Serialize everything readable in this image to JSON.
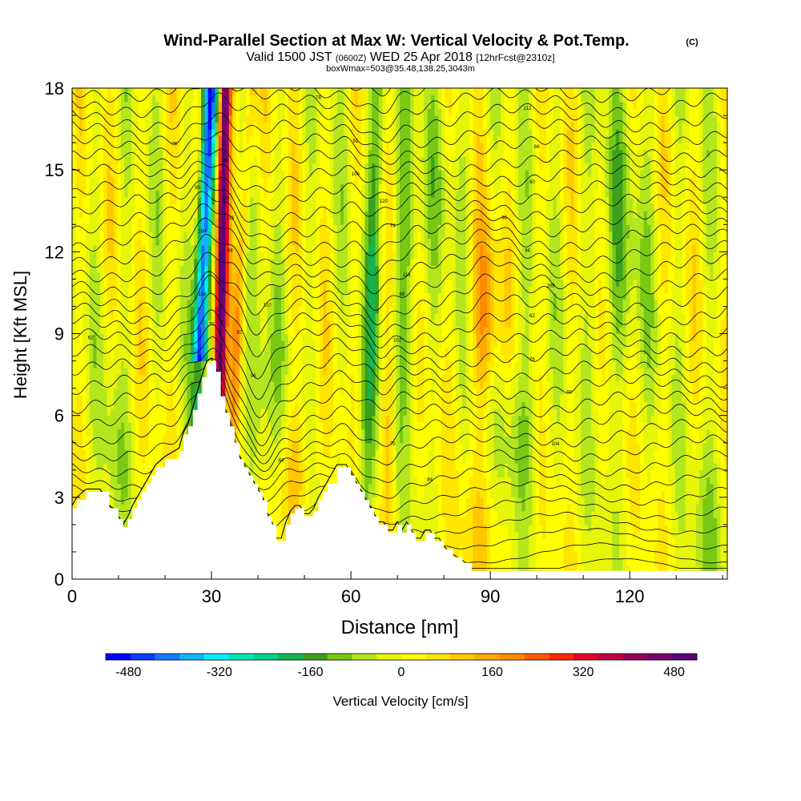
{
  "header": {
    "title": "Wind-Parallel Section at Max W: Vertical Velocity & Pot.Temp.",
    "copyright": "(C)",
    "valid_prefix": "Valid 1500 JST",
    "valid_utc": "(0600Z)",
    "valid_date": "WED 25 Apr 2018",
    "forecast": "[12hrFcst@2310z]",
    "box_info": "boxWmax=503@35.48,138.25,3043m"
  },
  "chart_data": {
    "type": "heatmap",
    "xlabel": "Distance [nm]",
    "ylabel": "Height [Kft MSL]",
    "xlim": [
      0,
      141
    ],
    "ylim": [
      0,
      18
    ],
    "x_ticks": [
      0,
      30,
      60,
      90,
      120
    ],
    "y_ticks": [
      0,
      3,
      6,
      9,
      12,
      15,
      18
    ],
    "colorbar": {
      "label": "Vertical Velocity [cm/s]",
      "ticks": [
        "-480",
        "-320",
        "-160",
        "0",
        "160",
        "320",
        "480"
      ],
      "range": [
        -520,
        520
      ],
      "colors": [
        "#0000ff",
        "#0a3cff",
        "#1478ff",
        "#14b4ff",
        "#00f0ff",
        "#00e6b4",
        "#00d28c",
        "#14b450",
        "#3ca01e",
        "#78c814",
        "#b4e61e",
        "#e6f50a",
        "#ffff00",
        "#ffe600",
        "#ffc800",
        "#ffaa00",
        "#ff8c00",
        "#ff5a00",
        "#ff2800",
        "#e60028",
        "#be0046",
        "#96005a",
        "#78006e",
        "#5a0078"
      ]
    },
    "terrain_kft": [
      [
        0,
        2.6
      ],
      [
        1,
        2.9
      ],
      [
        3,
        3.2
      ],
      [
        6,
        3.2
      ],
      [
        8,
        2.6
      ],
      [
        10,
        2.2
      ],
      [
        11,
        1.9
      ],
      [
        12,
        2.2
      ],
      [
        13,
        2.6
      ],
      [
        14,
        2.9
      ],
      [
        15,
        3.2
      ],
      [
        16,
        3.5
      ],
      [
        17,
        3.8
      ],
      [
        18,
        4.1
      ],
      [
        20,
        4.4
      ],
      [
        23,
        4.7
      ],
      [
        24,
        5.3
      ],
      [
        25,
        5.6
      ],
      [
        26,
        6.2
      ],
      [
        27,
        6.8
      ],
      [
        28,
        7.4
      ],
      [
        29,
        7.9
      ],
      [
        30,
        8.0
      ],
      [
        31,
        7.6
      ],
      [
        32,
        6.7
      ],
      [
        33,
        6.1
      ],
      [
        34,
        5.6
      ],
      [
        35,
        5.0
      ],
      [
        36,
        4.4
      ],
      [
        37,
        4.1
      ],
      [
        38,
        3.8
      ],
      [
        39,
        3.5
      ],
      [
        40,
        3.2
      ],
      [
        41,
        2.9
      ],
      [
        42,
        2.3
      ],
      [
        43,
        2.0
      ],
      [
        44,
        1.4
      ],
      [
        45,
        1.4
      ],
      [
        46,
        2.0
      ],
      [
        47,
        2.4
      ],
      [
        48,
        2.6
      ],
      [
        49,
        2.6
      ],
      [
        50,
        2.3
      ],
      [
        51,
        2.3
      ],
      [
        52,
        2.5
      ],
      [
        53,
        2.9
      ],
      [
        54,
        3.2
      ],
      [
        55,
        3.5
      ],
      [
        57,
        4.1
      ],
      [
        59,
        4.1
      ],
      [
        60,
        3.8
      ],
      [
        61,
        3.5
      ],
      [
        62,
        3.2
      ],
      [
        63,
        2.9
      ],
      [
        64,
        2.6
      ],
      [
        65,
        2.3
      ],
      [
        66,
        2.0
      ],
      [
        67,
        2.0
      ],
      [
        68,
        1.7
      ],
      [
        69,
        1.7
      ],
      [
        70,
        2.0
      ],
      [
        71,
        1.7
      ],
      [
        72,
        2.0
      ],
      [
        73,
        1.7
      ],
      [
        74,
        1.4
      ],
      [
        75,
        1.4
      ],
      [
        76,
        1.7
      ],
      [
        77,
        1.7
      ],
      [
        78,
        1.4
      ],
      [
        79,
        1.4
      ],
      [
        80,
        1.1
      ],
      [
        82,
        0.8
      ],
      [
        84,
        0.6
      ],
      [
        86,
        0.3
      ],
      [
        90,
        0.3
      ],
      [
        141,
        0.3
      ]
    ],
    "theta_label_values": [
      "62",
      "64",
      "66",
      "68",
      "70",
      "72",
      "74",
      "76",
      "78",
      "80",
      "82",
      "84",
      "86",
      "88",
      "90",
      "92",
      "94",
      "96",
      "98",
      "100",
      "102",
      "104",
      "106",
      "108",
      "110",
      "112",
      "114",
      "116",
      "118",
      "120"
    ]
  }
}
